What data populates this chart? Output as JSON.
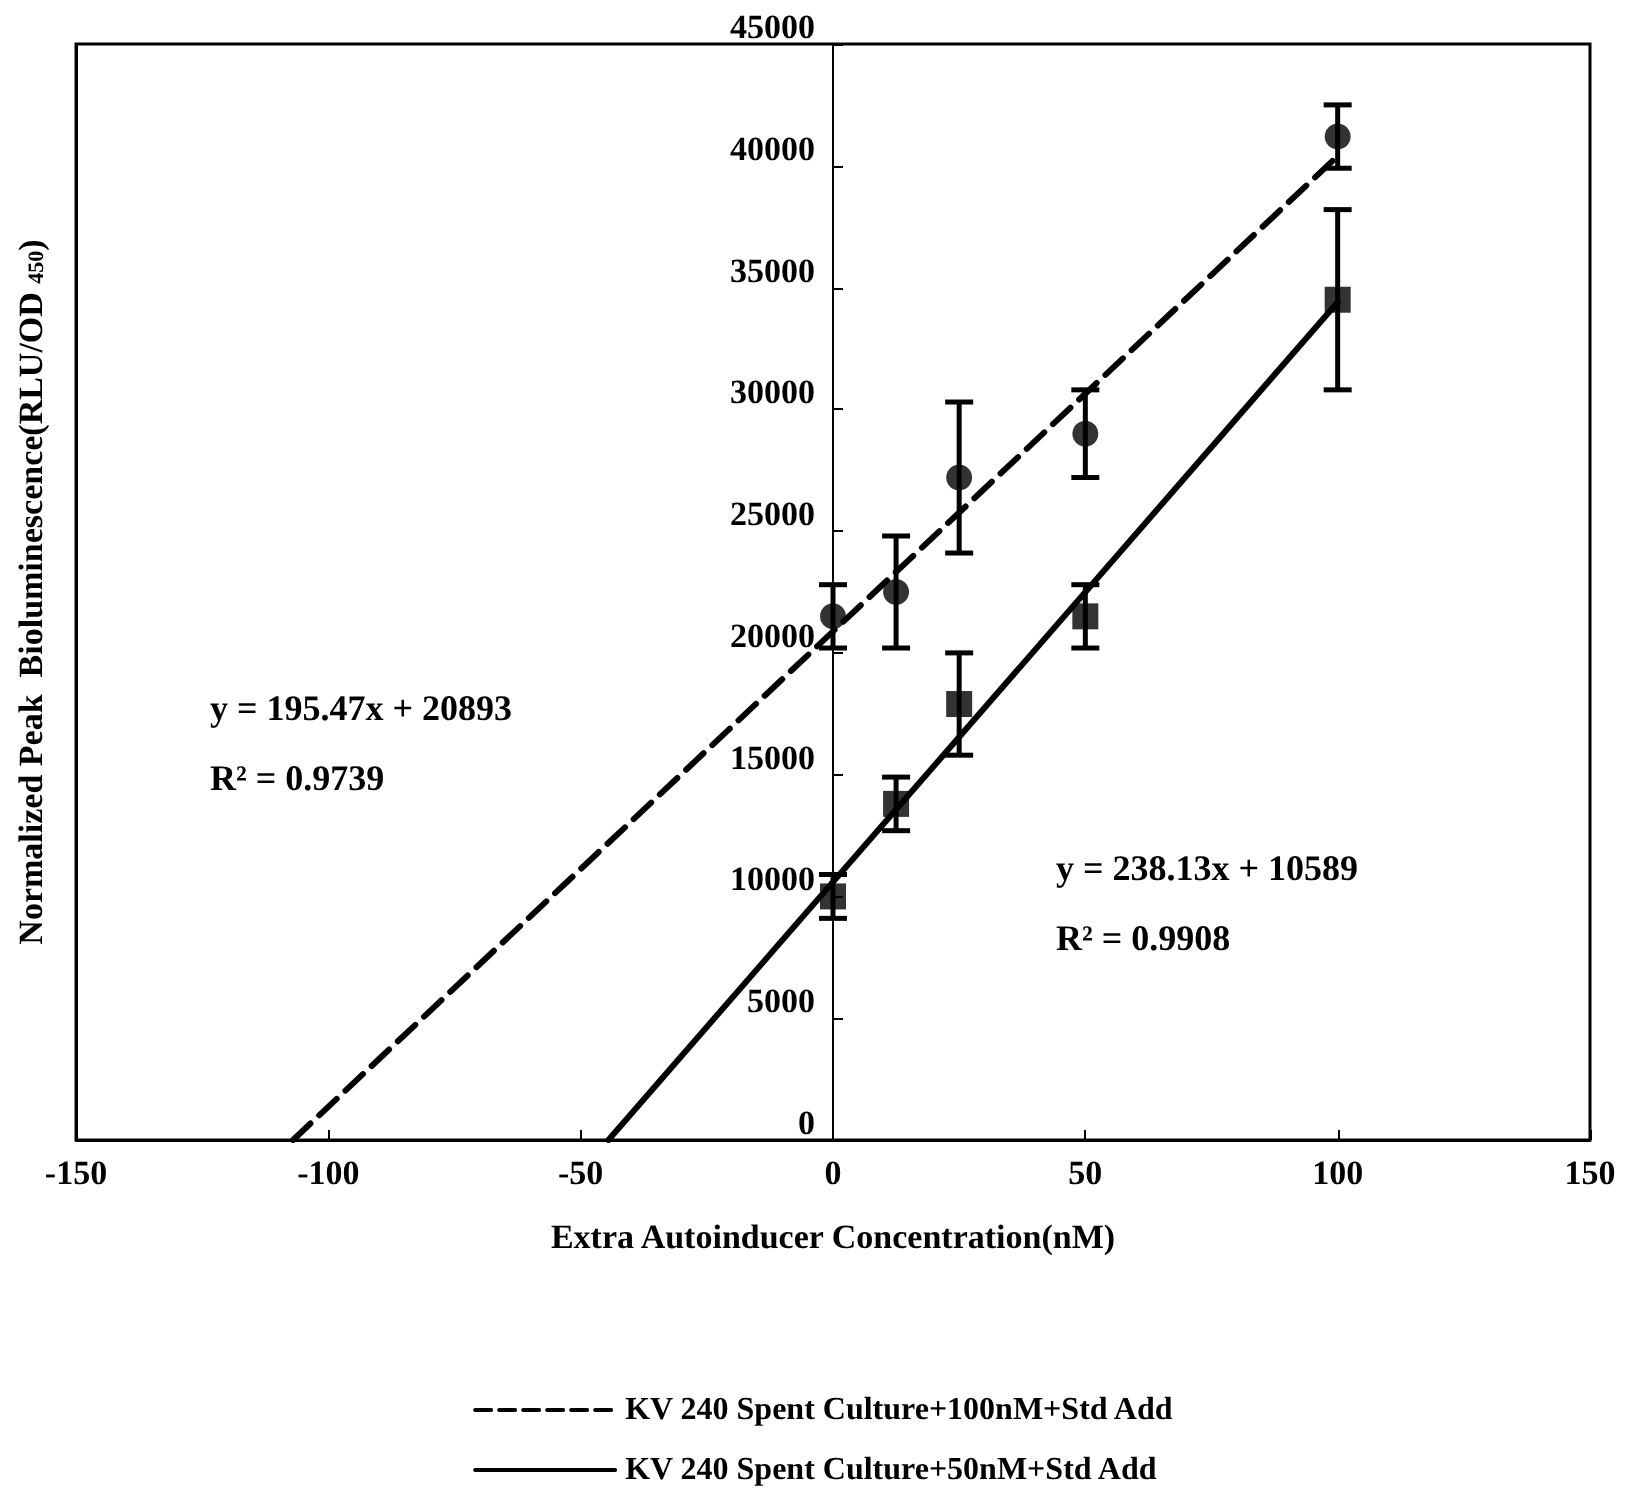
{
  "chart_data": {
    "type": "scatter",
    "xlabel": "Extra Autoinducer Concentration(nM)",
    "ylabel": "Normalized Peak  Bioluminescence(RLU/OD $_{450}$)",
    "xlim": [
      -150,
      150
    ],
    "xticks": [
      -150,
      -100,
      -50,
      0,
      50,
      100,
      150
    ],
    "ylim": [
      0,
      45000
    ],
    "yticks": [
      0,
      5000,
      10000,
      15000,
      20000,
      25000,
      30000,
      35000,
      40000,
      45000
    ],
    "grid": false,
    "legend": "bottom",
    "annotations": [
      "y = 195.47x + 20893",
      "R² = 0.9739",
      "y = 238.13x + 10589",
      "R² = 0.9908"
    ],
    "series": [
      {
        "marker": "circle",
        "color": "#000000",
        "x": [
          0,
          12.5,
          25,
          50,
          100
        ],
        "values": [
          21500,
          22500,
          27200,
          29000,
          41200
        ],
        "errors": [
          1300,
          2300,
          3100,
          1800,
          1300
        ]
      },
      {
        "marker": "square",
        "color": "#000000",
        "x": [
          0,
          12.5,
          25,
          50,
          100
        ],
        "values": [
          10000,
          13800,
          17900,
          21500,
          34500
        ],
        "errors": [
          900,
          1100,
          2100,
          1300,
          3700
        ]
      },
      {
        "type": "line",
        "name": "KV 240 Spent Culture+100nM+Std Add",
        "marker": "none",
        "line_style": "dashed",
        "color": "#000000",
        "x": [
          -107,
          100
        ],
        "values": [
          0,
          40400
        ]
      },
      {
        "type": "line",
        "name": "KV 240 Spent Culture+50nM+Std Add",
        "marker": "none",
        "line_style": "solid",
        "color": "#000000",
        "x": [
          -44.5,
          100
        ],
        "values": [
          0,
          34400
        ]
      }
    ]
  }
}
